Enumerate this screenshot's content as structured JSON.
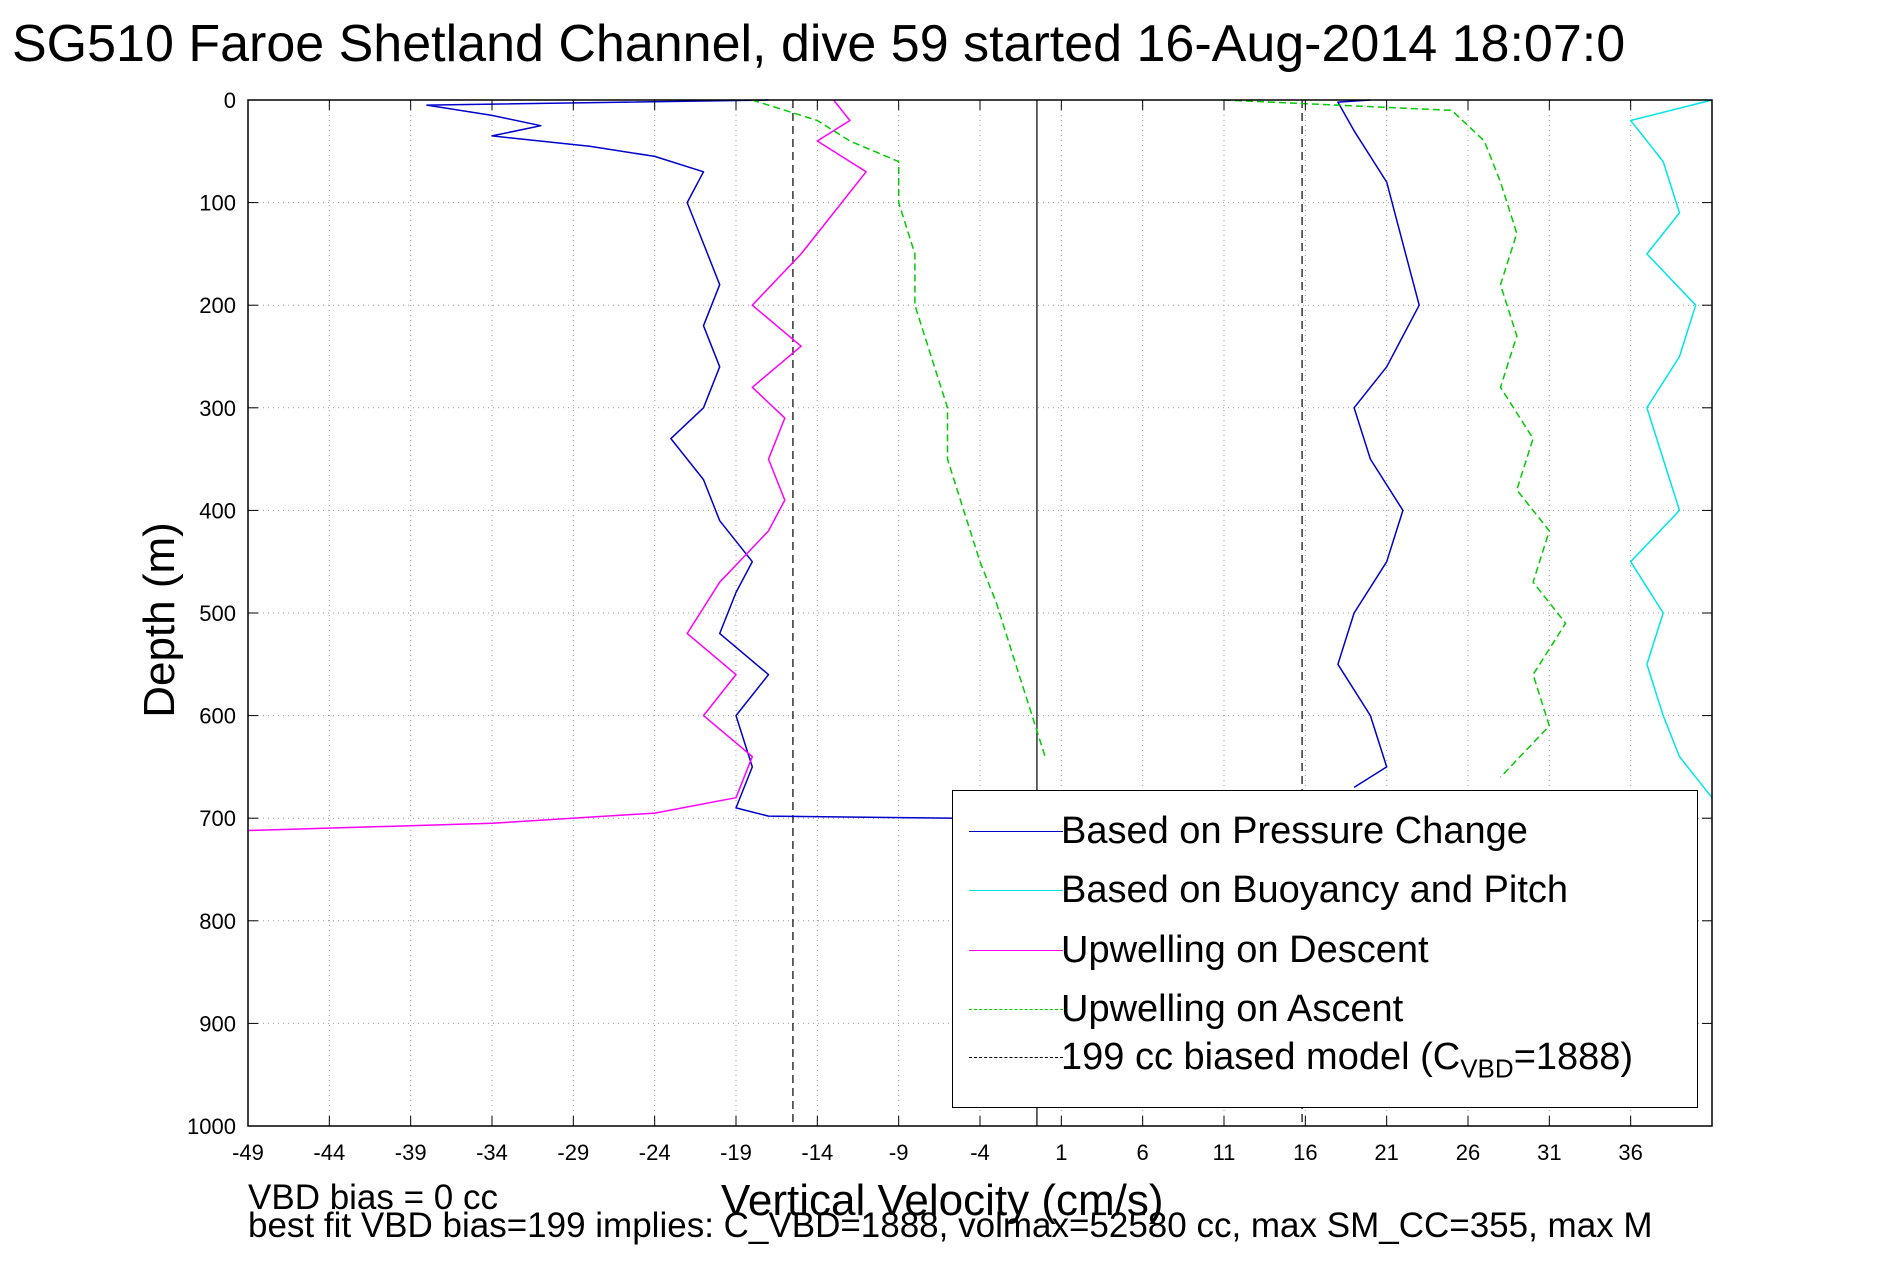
{
  "title": "SG510 Faroe Shetland Channel, dive 59 started 16-Aug-2014 18:07:0",
  "notes": {
    "line1": "VBD bias = 0 cc",
    "line2": "best fit VBD bias=199 implies: C_VBD=1888, volmax=52580 cc, max SM_CC=355, max M"
  },
  "chart_data": {
    "type": "line",
    "title": "SG510 Faroe Shetland Channel, dive 59 started 16-Aug-2014 18:07:0",
    "xlabel": "Vertical Velocity (cm/s)",
    "ylabel": "Depth (m)",
    "xlim": [
      -49,
      41
    ],
    "ylim": [
      0,
      1000
    ],
    "y_reversed": true,
    "grid": true,
    "xticks": [
      -49,
      -44,
      -39,
      -34,
      -29,
      -24,
      -19,
      -14,
      -9,
      -4,
      1,
      6,
      11,
      16,
      21,
      26,
      31,
      36
    ],
    "yticks": [
      0,
      100,
      200,
      300,
      400,
      500,
      600,
      700,
      800,
      900,
      1000
    ],
    "vertical_lines": [
      {
        "x": -15.5,
        "style": "dashed",
        "color": "#000000"
      },
      {
        "x": -0.5,
        "style": "solid",
        "color": "#000000"
      },
      {
        "x": 15.8,
        "style": "dashed",
        "color": "#000000"
      }
    ],
    "legend_position": "bottom-right",
    "legend": [
      {
        "label": "Based on Pressure Change",
        "color": "#0000cc",
        "style": "solid"
      },
      {
        "label": "Based on Buoyancy and Pitch",
        "color": "#00e5e5",
        "style": "solid"
      },
      {
        "label": "Upwelling on Descent",
        "color": "#ff00ff",
        "style": "solid"
      },
      {
        "label": "Upwelling on Ascent",
        "color": "#00cc00",
        "style": "dashed"
      },
      {
        "label_main": "199 cc biased model (C",
        "label_sub": "VBD",
        "label_tail": "=1888)",
        "color": "#000000",
        "style": "dashed"
      }
    ],
    "series": [
      {
        "name": "Based on Pressure Change",
        "color": "#0000cc",
        "style": "solid",
        "points": [
          [
            -17,
            0
          ],
          [
            -38,
            5
          ],
          [
            -34,
            15
          ],
          [
            -31,
            25
          ],
          [
            -34,
            35
          ],
          [
            -28,
            45
          ],
          [
            -24,
            55
          ],
          [
            -21,
            70
          ],
          [
            -22,
            100
          ],
          [
            -21,
            140
          ],
          [
            -20,
            180
          ],
          [
            -21,
            220
          ],
          [
            -20,
            260
          ],
          [
            -21,
            300
          ],
          [
            -23,
            330
          ],
          [
            -21,
            370
          ],
          [
            -20,
            410
          ],
          [
            -18,
            450
          ],
          [
            -19,
            480
          ],
          [
            -20,
            520
          ],
          [
            -17,
            560
          ],
          [
            -19,
            600
          ],
          [
            -18,
            650
          ],
          [
            -19,
            690
          ],
          [
            -17,
            698
          ],
          [
            0,
            701
          ],
          [
            -5,
            710
          ]
        ]
      },
      {
        "name": "Based on Pressure Change",
        "color": "#0000cc",
        "style": "solid",
        "points": [
          [
            20,
            0
          ],
          [
            18,
            2
          ],
          [
            19,
            30
          ],
          [
            21,
            80
          ],
          [
            22,
            140
          ],
          [
            23,
            200
          ],
          [
            21,
            260
          ],
          [
            19,
            300
          ],
          [
            20,
            350
          ],
          [
            22,
            400
          ],
          [
            21,
            450
          ],
          [
            19,
            500
          ],
          [
            18,
            550
          ],
          [
            20,
            600
          ],
          [
            21,
            650
          ],
          [
            19,
            670
          ]
        ]
      },
      {
        "name": "Based on Buoyancy and Pitch",
        "color": "#00e5e5",
        "style": "solid",
        "points": [
          [
            41,
            0
          ],
          [
            36,
            20
          ],
          [
            38,
            60
          ],
          [
            39,
            110
          ],
          [
            37,
            150
          ],
          [
            40,
            200
          ],
          [
            39,
            250
          ],
          [
            37,
            300
          ],
          [
            38,
            350
          ],
          [
            39,
            400
          ],
          [
            36,
            450
          ],
          [
            38,
            500
          ],
          [
            37,
            550
          ],
          [
            38,
            600
          ],
          [
            39,
            640
          ],
          [
            41,
            680
          ]
        ]
      },
      {
        "name": "Upwelling on Descent",
        "color": "#ff00ff",
        "style": "solid",
        "points": [
          [
            -13,
            0
          ],
          [
            -12,
            20
          ],
          [
            -14,
            40
          ],
          [
            -11,
            70
          ],
          [
            -13,
            110
          ],
          [
            -15,
            150
          ],
          [
            -18,
            200
          ],
          [
            -15,
            240
          ],
          [
            -18,
            280
          ],
          [
            -16,
            310
          ],
          [
            -17,
            350
          ],
          [
            -16,
            390
          ],
          [
            -17,
            420
          ],
          [
            -20,
            470
          ],
          [
            -22,
            520
          ],
          [
            -19,
            560
          ],
          [
            -21,
            600
          ],
          [
            -18,
            640
          ],
          [
            -19,
            680
          ],
          [
            -24,
            695
          ],
          [
            -34,
            705
          ],
          [
            -49,
            712
          ]
        ]
      },
      {
        "name": "Upwelling on Ascent",
        "color": "#00cc00",
        "style": "dashed",
        "points": [
          [
            -18,
            0
          ],
          [
            -14,
            20
          ],
          [
            -12,
            40
          ],
          [
            -9,
            60
          ],
          [
            -9,
            100
          ],
          [
            -8,
            150
          ],
          [
            -8,
            200
          ],
          [
            -7,
            250
          ],
          [
            -6,
            300
          ],
          [
            -6,
            350
          ],
          [
            -5,
            400
          ],
          [
            -4,
            450
          ],
          [
            -3,
            490
          ],
          [
            -2,
            540
          ],
          [
            -1,
            590
          ],
          [
            0,
            640
          ]
        ]
      },
      {
        "name": "Upwelling on Ascent",
        "color": "#00cc00",
        "style": "dashed",
        "points": [
          [
            11,
            0
          ],
          [
            25,
            10
          ],
          [
            27,
            40
          ],
          [
            28,
            80
          ],
          [
            29,
            130
          ],
          [
            28,
            180
          ],
          [
            29,
            230
          ],
          [
            28,
            280
          ],
          [
            30,
            330
          ],
          [
            29,
            380
          ],
          [
            31,
            420
          ],
          [
            30,
            470
          ],
          [
            32,
            510
          ],
          [
            30,
            560
          ],
          [
            31,
            610
          ],
          [
            28,
            660
          ]
        ]
      }
    ]
  }
}
